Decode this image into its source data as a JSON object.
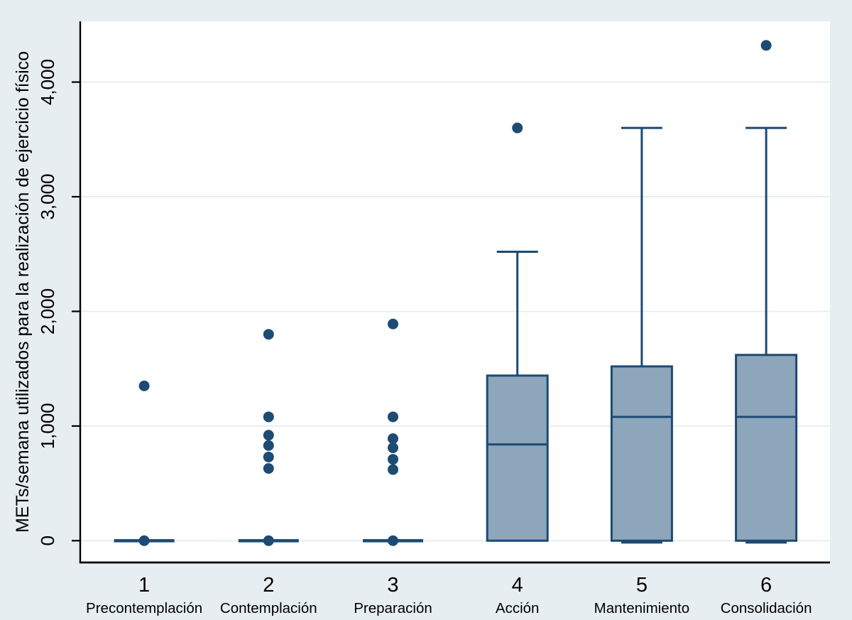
{
  "figure": {
    "background": "#e7eef1"
  },
  "chart_data": {
    "type": "box",
    "title": "",
    "ylabel": "METs/semana utilizados para la realización de ejercicio físico",
    "xlabel": "",
    "ylim": [
      -190,
      4530
    ],
    "yticks": [
      0,
      1000,
      2000,
      3000,
      4000
    ],
    "ytick_labels": [
      "0",
      "1,000",
      "2,000",
      "3,000",
      "4,000"
    ],
    "grid": true,
    "legend": "none",
    "categories": [
      {
        "number": "1",
        "label": "Precontemplación",
        "zero_line": 0,
        "box": null,
        "points": [
          1350,
          0
        ]
      },
      {
        "number": "2",
        "label": "Contemplación",
        "zero_line": 0,
        "box": null,
        "points": [
          1800,
          1080,
          920,
          830,
          730,
          630,
          0
        ]
      },
      {
        "number": "3",
        "label": "Preparación",
        "zero_line": 0,
        "box": null,
        "points": [
          1890,
          1080,
          890,
          810,
          710,
          620,
          0
        ]
      },
      {
        "number": "4",
        "label": "Acción",
        "zero_line": null,
        "box": {
          "q1": 0,
          "median": 840,
          "q3": 1440,
          "whisker_high": 2520,
          "whisker_low_cap": null
        },
        "points": [
          3600
        ]
      },
      {
        "number": "5",
        "label": "Mantenimiento",
        "zero_line": null,
        "box": {
          "q1": 0,
          "median": 1080,
          "q3": 1520,
          "whisker_high": 3600,
          "whisker_low_cap": 0
        },
        "points": []
      },
      {
        "number": "6",
        "label": "Consolidación",
        "zero_line": null,
        "box": {
          "q1": 0,
          "median": 1080,
          "q3": 1620,
          "whisker_high": 3600,
          "whisker_low_cap": 0
        },
        "points": [
          4320
        ]
      }
    ],
    "colors": {
      "background": "#e7eef1",
      "plot_bg": "#ffffff",
      "grid": "#e7eef1",
      "box_fill": "#8ea6bc",
      "box_stroke": "#1c4a72",
      "marker": "#1d4b73",
      "axis": "#000000",
      "text": "#000000"
    }
  }
}
